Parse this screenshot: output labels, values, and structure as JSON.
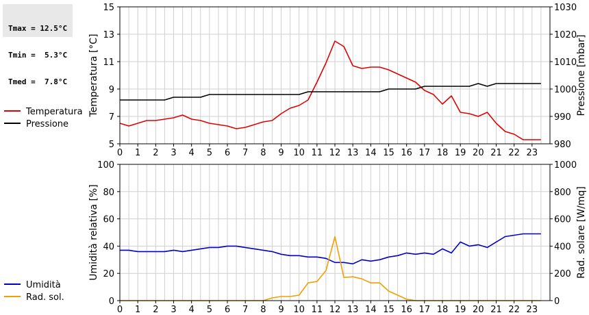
{
  "stats": {
    "tmax": "Tmax = 12.5°C",
    "tmin": "Tmin =  5.3°C",
    "tmed": "Tmed =  7.8°C"
  },
  "chart_data": [
    {
      "type": "line",
      "ylabel": "Temperatura [°C]",
      "y2label": "Pressione [mbar]",
      "xlim": [
        0,
        24
      ],
      "ylim": [
        5,
        15
      ],
      "y2lim": [
        980,
        1030
      ],
      "xticks": [
        "0",
        "1",
        "2",
        "3",
        "4",
        "5",
        "6",
        "7",
        "8",
        "9",
        "10",
        "11",
        "12",
        "13",
        "14",
        "15",
        "16",
        "17",
        "18",
        "19",
        "20",
        "21",
        "22",
        "23"
      ],
      "yticks": [
        "5",
        "7",
        "9",
        "11",
        "13",
        "15"
      ],
      "y2ticks": [
        "980",
        "990",
        "1000",
        "1010",
        "1020",
        "1030"
      ],
      "grid": true,
      "legend_position": "left",
      "series": [
        {
          "name": "Temperatura",
          "axis": "left",
          "color": "#e00000",
          "x": [
            0,
            0.5,
            1,
            1.5,
            2,
            2.5,
            3,
            3.5,
            4,
            4.5,
            5,
            5.5,
            6,
            6.5,
            7,
            7.5,
            8,
            8.5,
            9,
            9.5,
            10,
            10.5,
            11,
            11.5,
            12,
            12.5,
            13,
            13.5,
            14,
            14.5,
            15,
            15.5,
            16,
            16.5,
            17,
            17.5,
            18,
            18.5,
            19,
            19.5,
            20,
            20.5,
            21,
            21.5,
            22,
            22.5,
            23,
            23.5
          ],
          "values": [
            6.5,
            6.3,
            6.5,
            6.7,
            6.7,
            6.8,
            6.9,
            7.1,
            6.8,
            6.7,
            6.5,
            6.4,
            6.3,
            6.1,
            6.2,
            6.4,
            6.6,
            6.7,
            7.2,
            7.6,
            7.8,
            8.2,
            9.5,
            10.9,
            12.5,
            12.1,
            10.7,
            10.5,
            10.6,
            10.6,
            10.4,
            10.1,
            9.8,
            9.5,
            8.9,
            8.6,
            7.9,
            8.5,
            7.3,
            7.2,
            7.0,
            7.3,
            6.5,
            5.9,
            5.7,
            5.3,
            5.3,
            5.3
          ]
        },
        {
          "name": "Pressione",
          "axis": "right",
          "color": "#000000",
          "x": [
            0,
            0.5,
            1,
            1.5,
            2,
            2.5,
            3,
            3.5,
            4,
            4.5,
            5,
            5.5,
            6,
            6.5,
            7,
            7.5,
            8,
            8.5,
            9,
            9.5,
            10,
            10.5,
            11,
            11.5,
            12,
            12.5,
            13,
            13.5,
            14,
            14.5,
            15,
            15.5,
            16,
            16.5,
            17,
            17.5,
            18,
            18.5,
            19,
            19.5,
            20,
            20.5,
            21,
            21.5,
            22,
            22.5,
            23,
            23.5
          ],
          "values": [
            996,
            996,
            996,
            996,
            996,
            996,
            997,
            997,
            997,
            997,
            998,
            998,
            998,
            998,
            998,
            998,
            998,
            998,
            998,
            998,
            998,
            999,
            999,
            999,
            999,
            999,
            999,
            999,
            999,
            999,
            1000,
            1000,
            1000,
            1000,
            1001,
            1001,
            1001,
            1001,
            1001,
            1001,
            1002,
            1001,
            1002,
            1002,
            1002,
            1002,
            1002,
            1002
          ]
        }
      ]
    },
    {
      "type": "line",
      "ylabel": "Umidità relativa [%]",
      "y2label": "Rad. solare [W/mq]",
      "xlim": [
        0,
        24
      ],
      "ylim": [
        0,
        100
      ],
      "y2lim": [
        0,
        1000
      ],
      "xticks": [
        "0",
        "1",
        "2",
        "3",
        "4",
        "5",
        "6",
        "7",
        "8",
        "9",
        "10",
        "11",
        "12",
        "13",
        "14",
        "15",
        "16",
        "17",
        "18",
        "19",
        "20",
        "21",
        "22",
        "23"
      ],
      "yticks": [
        "0",
        "20",
        "40",
        "60",
        "80",
        "100"
      ],
      "y2ticks": [
        "0",
        "200",
        "400",
        "600",
        "800",
        "1000"
      ],
      "grid": true,
      "legend_position": "left",
      "series": [
        {
          "name": "Umidità",
          "axis": "left",
          "color": "#0000c8",
          "x": [
            0,
            0.5,
            1,
            1.5,
            2,
            2.5,
            3,
            3.5,
            4,
            4.5,
            5,
            5.5,
            6,
            6.5,
            7,
            7.5,
            8,
            8.5,
            9,
            9.5,
            10,
            10.5,
            11,
            11.5,
            12,
            12.5,
            13,
            13.5,
            14,
            14.5,
            15,
            15.5,
            16,
            16.5,
            17,
            17.5,
            18,
            18.5,
            19,
            19.5,
            20,
            20.5,
            21,
            21.5,
            22,
            22.5,
            23,
            23.5
          ],
          "values": [
            37,
            37,
            36,
            36,
            36,
            36,
            37,
            36,
            37,
            38,
            39,
            39,
            40,
            40,
            39,
            38,
            37,
            36,
            34,
            33,
            33,
            32,
            32,
            31,
            28,
            28,
            27,
            30,
            29,
            30,
            32,
            33,
            35,
            34,
            35,
            34,
            38,
            35,
            43,
            40,
            41,
            39,
            43,
            47,
            48,
            49,
            49,
            49
          ]
        },
        {
          "name": "Rad. sol.",
          "axis": "right",
          "color": "#f0a000",
          "x": [
            0,
            0.5,
            1,
            1.5,
            2,
            2.5,
            3,
            3.5,
            4,
            4.5,
            5,
            5.5,
            6,
            6.5,
            7,
            7.5,
            8,
            8.5,
            9,
            9.5,
            10,
            10.5,
            11,
            11.5,
            12,
            12.5,
            13,
            13.5,
            14,
            14.5,
            15,
            15.5,
            16,
            16.5,
            17,
            17.5,
            18,
            18.5,
            19,
            19.5,
            20,
            20.5,
            21,
            21.5,
            22,
            22.5,
            23,
            23.5
          ],
          "values": [
            0,
            0,
            0,
            0,
            0,
            0,
            0,
            0,
            0,
            0,
            0,
            0,
            0,
            0,
            0,
            0,
            0,
            20,
            30,
            30,
            40,
            130,
            140,
            220,
            470,
            170,
            175,
            160,
            130,
            130,
            70,
            40,
            10,
            0,
            0,
            0,
            0,
            0,
            0,
            0,
            0,
            0,
            0,
            0,
            0,
            0,
            0,
            0
          ]
        }
      ]
    }
  ]
}
